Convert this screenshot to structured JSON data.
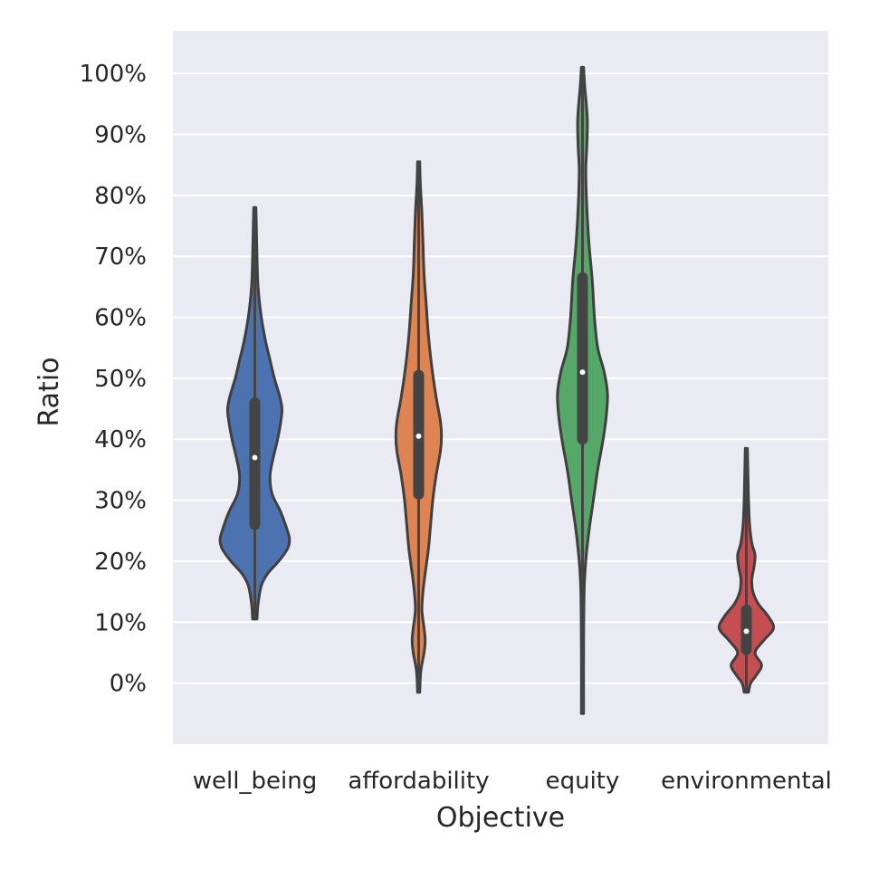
{
  "chart_data": {
    "type": "violin",
    "xlabel": "Objective",
    "ylabel": "Ratio",
    "ylim": [
      -10,
      107
    ],
    "yticks": [
      0,
      10,
      20,
      30,
      40,
      50,
      60,
      70,
      80,
      90,
      100
    ],
    "ytick_labels": [
      "0%",
      "10%",
      "20%",
      "30%",
      "40%",
      "50%",
      "60%",
      "70%",
      "80%",
      "90%",
      "100%"
    ],
    "grid": true,
    "categories": [
      "well_being",
      "affordability",
      "equity",
      "environmental"
    ],
    "series": [
      {
        "category": "well_being",
        "color": "#4c72b0",
        "min": 10.5,
        "max": 78,
        "q1": 26,
        "median": 37,
        "q3": 46,
        "density": [
          [
            10.5,
            0.02
          ],
          [
            13,
            0.03
          ],
          [
            16,
            0.06
          ],
          [
            18,
            0.12
          ],
          [
            20,
            0.22
          ],
          [
            22,
            0.3
          ],
          [
            23.5,
            0.32
          ],
          [
            25,
            0.3
          ],
          [
            28,
            0.24
          ],
          [
            31,
            0.16
          ],
          [
            34,
            0.14
          ],
          [
            37,
            0.17
          ],
          [
            40,
            0.21
          ],
          [
            43,
            0.24
          ],
          [
            45,
            0.25
          ],
          [
            47,
            0.23
          ],
          [
            50,
            0.18
          ],
          [
            53,
            0.14
          ],
          [
            56,
            0.1
          ],
          [
            60,
            0.06
          ],
          [
            65,
            0.03
          ],
          [
            70,
            0.02
          ],
          [
            74,
            0.015
          ],
          [
            78,
            0.01
          ]
        ]
      },
      {
        "category": "affordability",
        "color": "#dd8452",
        "min": -1.5,
        "max": 85.5,
        "q1": 31,
        "median": 40.5,
        "q3": 50.5,
        "density": [
          [
            -1.5,
            0.01
          ],
          [
            2,
            0.02
          ],
          [
            5,
            0.05
          ],
          [
            7,
            0.06
          ],
          [
            9,
            0.05
          ],
          [
            12,
            0.03
          ],
          [
            15,
            0.04
          ],
          [
            18,
            0.06
          ],
          [
            22,
            0.09
          ],
          [
            26,
            0.11
          ],
          [
            30,
            0.13
          ],
          [
            34,
            0.16
          ],
          [
            38,
            0.2
          ],
          [
            40.5,
            0.21
          ],
          [
            43,
            0.2
          ],
          [
            47,
            0.16
          ],
          [
            52,
            0.12
          ],
          [
            57,
            0.09
          ],
          [
            62,
            0.07
          ],
          [
            67,
            0.05
          ],
          [
            72,
            0.04
          ],
          [
            77,
            0.03
          ],
          [
            82,
            0.015
          ],
          [
            85.5,
            0.01
          ]
        ]
      },
      {
        "category": "equity",
        "color": "#55a868",
        "min": -5,
        "max": 101,
        "q1": 40,
        "median": 51,
        "q3": 66.5,
        "density": [
          [
            -5,
            0.01
          ],
          [
            5,
            0.01
          ],
          [
            15,
            0.015
          ],
          [
            20,
            0.03
          ],
          [
            25,
            0.06
          ],
          [
            30,
            0.1
          ],
          [
            35,
            0.14
          ],
          [
            40,
            0.19
          ],
          [
            44,
            0.22
          ],
          [
            47.5,
            0.23
          ],
          [
            51,
            0.2
          ],
          [
            55,
            0.14
          ],
          [
            60,
            0.11
          ],
          [
            66,
            0.09
          ],
          [
            72,
            0.06
          ],
          [
            78,
            0.04
          ],
          [
            84,
            0.03
          ],
          [
            88,
            0.04
          ],
          [
            92,
            0.045
          ],
          [
            95,
            0.035
          ],
          [
            98,
            0.02
          ],
          [
            101,
            0.01
          ]
        ]
      },
      {
        "category": "environmental",
        "color": "#c44e52",
        "min": -1.5,
        "max": 38.5,
        "q1": 5.5,
        "median": 8.5,
        "q3": 12,
        "density": [
          [
            -1.5,
            0.02
          ],
          [
            0,
            0.04
          ],
          [
            1.5,
            0.1
          ],
          [
            3,
            0.14
          ],
          [
            5,
            0.08
          ],
          [
            7,
            0.16
          ],
          [
            9,
            0.25
          ],
          [
            11,
            0.2
          ],
          [
            13,
            0.11
          ],
          [
            15,
            0.06
          ],
          [
            17,
            0.05
          ],
          [
            19,
            0.07
          ],
          [
            21,
            0.08
          ],
          [
            23,
            0.05
          ],
          [
            26,
            0.03
          ],
          [
            30,
            0.02
          ],
          [
            34,
            0.015
          ],
          [
            38.5,
            0.01
          ]
        ]
      }
    ]
  }
}
